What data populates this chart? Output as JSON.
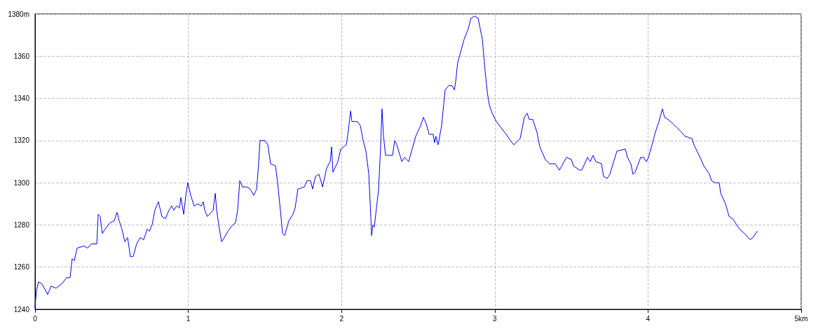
{
  "chart_data": {
    "type": "line",
    "x": [
      0,
      0.009,
      0.023,
      0.046,
      0.082,
      0.105,
      0.137,
      0.174,
      0.206,
      0.229,
      0.242,
      0.256,
      0.274,
      0.32,
      0.343,
      0.366,
      0.403,
      0.412,
      0.425,
      0.439,
      0.457,
      0.489,
      0.517,
      0.535,
      0.549,
      0.567,
      0.586,
      0.604,
      0.622,
      0.64,
      0.663,
      0.686,
      0.709,
      0.732,
      0.746,
      0.764,
      0.782,
      0.805,
      0.828,
      0.851,
      0.874,
      0.892,
      0.906,
      0.924,
      0.942,
      0.952,
      0.97,
      0.984,
      0.997,
      1.016,
      1.038,
      1.061,
      1.084,
      1.098,
      1.107,
      1.125,
      1.162,
      1.176,
      1.185,
      1.199,
      1.217,
      1.235,
      1.258,
      1.29,
      1.308,
      1.322,
      1.336,
      1.354,
      1.382,
      1.404,
      1.427,
      1.446,
      1.459,
      1.468,
      1.5,
      1.519,
      1.537,
      1.569,
      1.583,
      1.601,
      1.615,
      1.629,
      1.656,
      1.683,
      1.697,
      1.715,
      1.757,
      1.775,
      1.798,
      1.811,
      1.83,
      1.853,
      1.876,
      1.903,
      1.926,
      1.935,
      1.944,
      1.976,
      1.995,
      2.031,
      2.045,
      2.059,
      2.068,
      2.104,
      2.123,
      2.141,
      2.159,
      2.173,
      2.178,
      2.191,
      2.196,
      2.205,
      2.214,
      2.223,
      2.242,
      2.255,
      2.264,
      2.274,
      2.287,
      2.333,
      2.347,
      2.361,
      2.393,
      2.411,
      2.438,
      2.457,
      2.484,
      2.516,
      2.534,
      2.553,
      2.571,
      2.598,
      2.607,
      2.616,
      2.63,
      2.653,
      2.676,
      2.699,
      2.722,
      2.736,
      2.745,
      2.758,
      2.781,
      2.8,
      2.827,
      2.845,
      2.868,
      2.891,
      2.905,
      2.919,
      2.937,
      2.951,
      2.964,
      2.983,
      3.01,
      3.042,
      3.074,
      3.102,
      3.124,
      3.166,
      3.193,
      3.211,
      3.225,
      3.248,
      3.275,
      3.294,
      3.33,
      3.358,
      3.394,
      3.422,
      3.468,
      3.5,
      3.513,
      3.554,
      3.568,
      3.605,
      3.623,
      3.641,
      3.66,
      3.696,
      3.71,
      3.733,
      3.751,
      3.797,
      3.852,
      3.866,
      3.888,
      3.902,
      3.916,
      3.952,
      3.971,
      3.989,
      4.003,
      4.026,
      4.048,
      4.071,
      4.094,
      4.108,
      4.131,
      4.163,
      4.19,
      4.218,
      4.241,
      4.286,
      4.3,
      4.346,
      4.364,
      4.401,
      4.414,
      4.437,
      4.465,
      4.474,
      4.506,
      4.529,
      4.552,
      4.597,
      4.629,
      4.666,
      4.684,
      4.712
    ],
    "series": [
      {
        "color": "#0000ff",
        "values": [
          1241,
          1249,
          1253,
          1252,
          1247,
          1251,
          1250,
          1252,
          1255,
          1255,
          1264,
          1263,
          1269,
          1270,
          1269,
          1271,
          1271,
          1285,
          1284,
          1276,
          1278,
          1281,
          1282,
          1286,
          1282,
          1278,
          1272,
          1274,
          1265,
          1265,
          1271,
          1274,
          1273,
          1278,
          1277,
          1280,
          1287,
          1291,
          1284,
          1283,
          1287,
          1289,
          1287,
          1289,
          1288,
          1293,
          1285,
          1294,
          1300,
          1294,
          1289,
          1290,
          1289,
          1291,
          1287,
          1284,
          1287,
          1295,
          1287,
          1280,
          1272,
          1274,
          1277,
          1280,
          1281,
          1287,
          1301,
          1298,
          1298,
          1297,
          1294,
          1297,
          1309,
          1320,
          1320,
          1318,
          1309,
          1308,
          1300,
          1287,
          1276,
          1275,
          1282,
          1285,
          1288,
          1297,
          1298,
          1301,
          1301,
          1297,
          1303,
          1304,
          1298,
          1307,
          1310,
          1317,
          1305,
          1310,
          1316,
          1318,
          1325,
          1334,
          1329,
          1329,
          1327,
          1320,
          1315,
          1307,
          1304,
          1284,
          1275,
          1280,
          1279,
          1285,
          1297,
          1317,
          1335,
          1322,
          1313,
          1313,
          1320,
          1318,
          1310,
          1312,
          1310,
          1315,
          1322,
          1327,
          1331,
          1328,
          1323,
          1323,
          1319,
          1322,
          1318,
          1327,
          1344,
          1346,
          1346,
          1344,
          1348,
          1357,
          1363,
          1368,
          1373,
          1378,
          1379,
          1378,
          1373,
          1368,
          1353,
          1343,
          1337,
          1333,
          1329,
          1326,
          1323,
          1320,
          1318,
          1321,
          1331,
          1333,
          1330,
          1330,
          1324,
          1317,
          1311,
          1309,
          1309,
          1306,
          1312,
          1311,
          1308,
          1306,
          1306,
          1312,
          1310,
          1313,
          1310,
          1309,
          1303,
          1302,
          1304,
          1315,
          1316,
          1312,
          1309,
          1304,
          1305,
          1312,
          1312,
          1310,
          1312,
          1318,
          1324,
          1329,
          1335,
          1331,
          1330,
          1328,
          1326,
          1324,
          1322,
          1321,
          1318,
          1311,
          1308,
          1304,
          1301,
          1300,
          1300,
          1295,
          1290,
          1284,
          1283,
          1278,
          1276,
          1273,
          1274,
          1277
        ]
      }
    ],
    "xlim": [
      0,
      5
    ],
    "xticks": [
      0,
      1,
      2,
      3,
      4,
      {
        "value": 5,
        "label": "5km"
      }
    ],
    "ylim": [
      1240,
      1380
    ],
    "yticks": [
      1240,
      1260,
      1280,
      1300,
      1320,
      1340,
      1360,
      {
        "value": 1380,
        "label": "1380m"
      }
    ],
    "grid": true,
    "line_style": "solid",
    "marker": "none"
  }
}
